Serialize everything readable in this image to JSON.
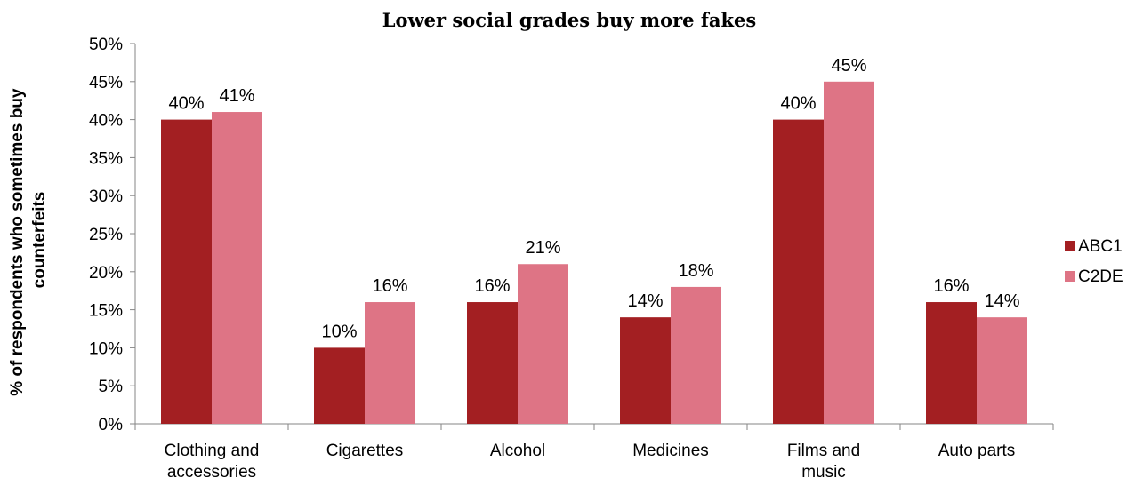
{
  "chart_data": {
    "type": "bar",
    "title": "Lower social grades buy more fakes",
    "ylabel": "% of respondents who sometimes buy counterfeits",
    "ylabel_lines": [
      "% of respondents who sometimes buy",
      "counterfeits"
    ],
    "xlabel": "",
    "categories": [
      [
        "Clothing and",
        "accessories"
      ],
      [
        "Cigarettes"
      ],
      [
        "Alcohol"
      ],
      [
        "Medicines"
      ],
      [
        "Films and",
        "music"
      ],
      [
        "Auto parts"
      ]
    ],
    "series": [
      {
        "name": "ABC1",
        "color": "#a31f22",
        "values": [
          40,
          10,
          16,
          14,
          40,
          16
        ]
      },
      {
        "name": "C2DE",
        "color": "#de7485",
        "values": [
          41,
          16,
          21,
          18,
          45,
          14
        ]
      }
    ],
    "ylim": [
      0,
      50
    ],
    "yticks": [
      0,
      5,
      10,
      15,
      20,
      25,
      30,
      35,
      40,
      45,
      50
    ],
    "tick_suffix": "%",
    "grid": false,
    "legend_position": "right"
  }
}
